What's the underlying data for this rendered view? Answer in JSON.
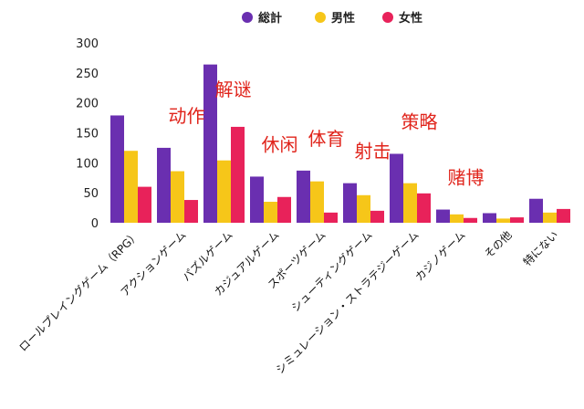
{
  "chart_data": {
    "type": "bar",
    "title": "",
    "xlabel": "",
    "ylabel": "",
    "ylim": [
      0,
      300
    ],
    "yticks": [
      0,
      50,
      100,
      150,
      200,
      250,
      300
    ],
    "grid": false,
    "legend_position": "top-center",
    "categories": [
      "ロールプレイングゲーム（RPG）",
      "アクションゲーム",
      "パズルゲーム",
      "カジュアルゲーム",
      "スポーツゲーム",
      "シューティングゲーム",
      "シミュレーション・ストラテジーゲーム",
      "カジノゲーム",
      "その他",
      "特にない"
    ],
    "series": [
      {
        "name": "総計",
        "color": "#6a2fb0",
        "values": [
          179,
          125,
          264,
          77,
          87,
          66,
          115,
          22,
          16,
          40
        ]
      },
      {
        "name": "男性",
        "color": "#f6c619",
        "values": [
          120,
          86,
          104,
          35,
          69,
          46,
          66,
          14,
          7,
          17
        ]
      },
      {
        "name": "女性",
        "color": "#e8225a",
        "values": [
          60,
          38,
          160,
          43,
          17,
          20,
          49,
          8,
          9,
          23
        ]
      }
    ],
    "annotations": [
      {
        "text": "动作",
        "category_index": 1
      },
      {
        "text": "解谜",
        "category_index": 2
      },
      {
        "text": "休闲",
        "category_index": 3
      },
      {
        "text": "体育",
        "category_index": 4
      },
      {
        "text": "射击",
        "category_index": 5
      },
      {
        "text": "策略",
        "category_index": 6
      },
      {
        "text": "赌博",
        "category_index": 7
      }
    ]
  }
}
